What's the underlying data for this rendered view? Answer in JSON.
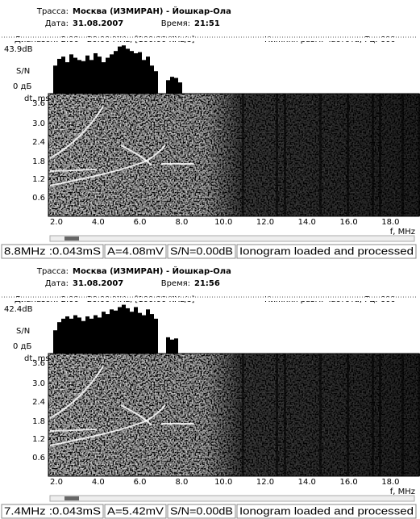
{
  "panels": [
    {
      "route_label": "Трасса:",
      "route": "Москва (ИЗМИРАН) - Йошкар-Ола",
      "date_label": "Дата:",
      "date": "31.08.2007",
      "time_label": "Время:",
      "time": "21:51",
      "range": "Диапазон: 2.00 - 20.00 MHz, [100.00 KHz/s]",
      "lower_freq": "Нижняя разм. частота, Гц: 600",
      "snr_max": "43.9dB",
      "snr_label": "S/N",
      "snr_zero": "0 дБ",
      "snr_db": [
        25,
        31,
        33,
        28,
        35,
        32,
        30,
        29,
        34,
        30,
        36,
        33,
        28,
        32,
        35,
        38,
        42,
        43,
        40,
        38,
        36,
        37,
        30,
        33,
        25,
        20,
        0,
        0,
        12,
        15,
        14,
        10,
        0
      ],
      "y_axis_label": "dt, ms",
      "y_ticks": [
        "3.6",
        "3.0",
        "2.4",
        "1.8",
        "1.2",
        "0.6"
      ],
      "x_ticks": [
        "2.0",
        "4.0",
        "6.0",
        "8.0",
        "10.0",
        "12.0",
        "14.0",
        "16.0",
        "18.0"
      ],
      "x_axis_label": "f, MHz",
      "status": {
        "cursor": "8.8MHz :0.043mS",
        "amplitude": "A=4.08mV",
        "snr": "S/N=0.00dB",
        "message": "Ionogram loaded and processed"
      }
    },
    {
      "route_label": "Трасса:",
      "route": "Москва (ИЗМИРАН) - Йошкар-Ола",
      "date_label": "Дата:",
      "date": "31.08.2007",
      "time_label": "Время:",
      "time": "21:56",
      "range": "Диапазон: 2.00 - 20.00 MHz, [100.00 KHz/s]",
      "lower_freq": "Нижняя разм. частота, Гц: 600",
      "snr_max": "42.4dB",
      "snr_label": "S/N",
      "snr_zero": "0 дБ",
      "snr_db": [
        20,
        27,
        30,
        32,
        30,
        33,
        31,
        28,
        32,
        30,
        33,
        31,
        36,
        34,
        38,
        37,
        40,
        42,
        39,
        36,
        40,
        35,
        33,
        38,
        34,
        30,
        0,
        0,
        14,
        12,
        13,
        0,
        0,
        0
      ],
      "y_axis_label": "dt, ms",
      "y_ticks": [
        "3.6",
        "3.0",
        "2.4",
        "1.8",
        "1.2",
        "0.6"
      ],
      "x_ticks": [
        "2.0",
        "4.0",
        "6.0",
        "8.0",
        "10.0",
        "12.0",
        "14.0",
        "16.0",
        "18.0"
      ],
      "x_axis_label": "f, MHz",
      "status": {
        "cursor": "7.4MHz :0.043mS",
        "amplitude": "A=5.42mV",
        "snr": "S/N=0.00dB",
        "message": "Ionogram loaded and processed"
      }
    }
  ]
}
